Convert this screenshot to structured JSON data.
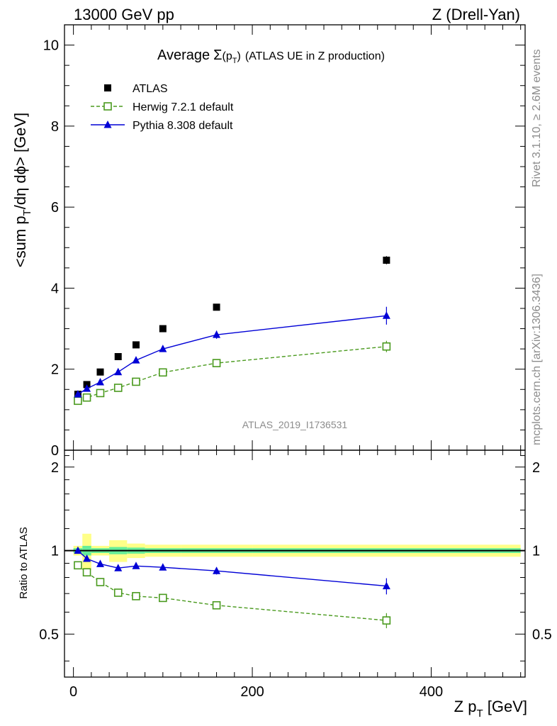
{
  "header": {
    "left": "13000 GeV pp",
    "right": "Z (Drell-Yan)"
  },
  "plot_title": {
    "prefix": "Average",
    "sigma": "Σ",
    "pt_open": "(p",
    "pt_sub": "T",
    "pt_close": ")",
    "suffix": "(ATLAS UE in Z production)"
  },
  "side_labels": {
    "rivet": "Rivet 3.1.10, ≥ 2.6M events",
    "mcplots": "mcplots.cern.ch [arXiv:1306.3436]"
  },
  "analysis_id": "ATLAS_2019_I1736531",
  "axes": {
    "main_ylabel_pre": "<sum p",
    "main_ylabel_sub": "T",
    "main_ylabel_post": "/dη dϕ> [GeV]",
    "ratio_ylabel": "Ratio to ATLAS",
    "xlabel_pre": "Z p",
    "xlabel_sub": "T",
    "xlabel_post": " [GeV]"
  },
  "chart_data": [
    {
      "type": "scatter",
      "panel": "main",
      "xlim": [
        -10,
        505
      ],
      "ylim": [
        0,
        10.5
      ],
      "yticks": [
        0,
        2,
        4,
        6,
        8,
        10
      ],
      "ytick_labels": [
        "0",
        "2",
        "4",
        "6",
        "8",
        "10"
      ],
      "legend_position": "top-left",
      "series": [
        {
          "name": "ATLAS",
          "marker": "filled-square",
          "color": "#000000",
          "x": [
            5,
            15,
            30,
            50,
            70,
            100,
            160,
            350
          ],
          "y": [
            1.38,
            1.62,
            1.93,
            2.31,
            2.6,
            3.0,
            3.53,
            4.69
          ],
          "yerr": [
            0.03,
            0.04,
            0.04,
            0.05,
            0.05,
            0.06,
            0.07,
            0.1
          ]
        },
        {
          "name": "Herwig 7.2.1 default",
          "marker": "open-square",
          "line": "dashed",
          "color": "#4a9a1e",
          "x": [
            5,
            15,
            30,
            50,
            70,
            100,
            160,
            350
          ],
          "y": [
            1.22,
            1.3,
            1.41,
            1.54,
            1.69,
            1.92,
            2.15,
            2.56
          ],
          "yerr": [
            0.02,
            0.02,
            0.03,
            0.03,
            0.04,
            0.04,
            0.05,
            0.14
          ]
        },
        {
          "name": "Pythia 8.308 default",
          "marker": "filled-triangle",
          "line": "solid",
          "color": "#0000d6",
          "x": [
            5,
            15,
            30,
            50,
            70,
            100,
            160,
            350
          ],
          "y": [
            1.38,
            1.52,
            1.68,
            1.93,
            2.22,
            2.5,
            2.85,
            3.32
          ],
          "yerr": [
            0.03,
            0.03,
            0.04,
            0.04,
            0.05,
            0.06,
            0.1,
            0.22
          ]
        }
      ]
    },
    {
      "type": "scatter",
      "panel": "ratio",
      "xlim": [
        -10,
        505
      ],
      "ylim": [
        0.35,
        2.3
      ],
      "yscale": "log",
      "yticks": [
        0.5,
        1,
        2
      ],
      "ytick_labels": [
        "0.5",
        "1",
        "2"
      ],
      "xticks": [
        0,
        200,
        400
      ],
      "xtick_labels": [
        "0",
        "200",
        "400"
      ],
      "bands": {
        "bin_edges": [
          0,
          10,
          20,
          40,
          60,
          80,
          120,
          200,
          500
        ],
        "inner_halfwidth": [
          0.02,
          0.04,
          0.02,
          0.03,
          0.025,
          0.02,
          0.02,
          0.02
        ],
        "outer_halfwidth": [
          0.04,
          0.15,
          0.04,
          0.09,
          0.06,
          0.05,
          0.05,
          0.05
        ],
        "inner_color": "#66ee99",
        "outer_color": "#ffff88"
      },
      "series": [
        {
          "name": "Herwig 7.2.1 default",
          "marker": "open-square",
          "line": "dashed",
          "color": "#4a9a1e",
          "x": [
            5,
            15,
            30,
            50,
            70,
            100,
            160,
            350
          ],
          "y": [
            0.885,
            0.835,
            0.77,
            0.705,
            0.685,
            0.675,
            0.635,
            0.56
          ],
          "yerr": [
            0.015,
            0.015,
            0.015,
            0.015,
            0.015,
            0.015,
            0.015,
            0.035
          ]
        },
        {
          "name": "Pythia 8.308 default",
          "marker": "filled-triangle",
          "line": "solid",
          "color": "#0000d6",
          "x": [
            5,
            15,
            30,
            50,
            70,
            100,
            160,
            350
          ],
          "y": [
            1.0,
            0.935,
            0.895,
            0.865,
            0.88,
            0.87,
            0.845,
            0.745
          ],
          "yerr": [
            0.015,
            0.015,
            0.015,
            0.015,
            0.015,
            0.015,
            0.025,
            0.05
          ]
        }
      ]
    }
  ]
}
